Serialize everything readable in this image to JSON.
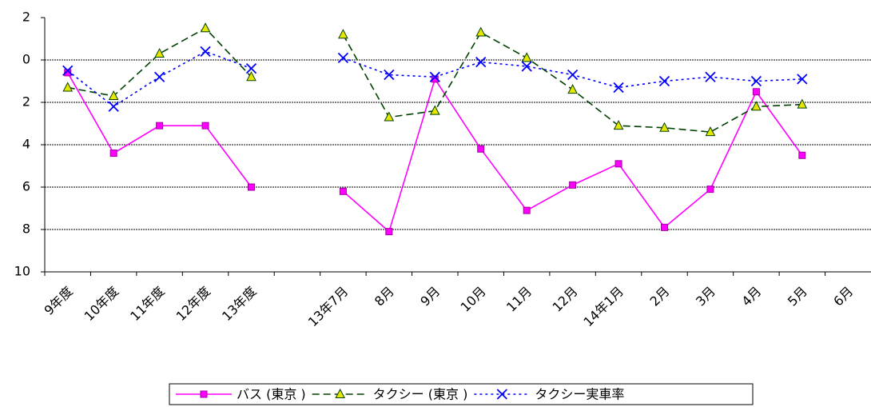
{
  "chart_data": {
    "type": "line",
    "categories": [
      "9年度",
      "10年度",
      "11年度",
      "12年度",
      "13年度",
      null,
      "13年7月",
      "8月",
      "9月",
      "10月",
      "11月",
      "12月",
      "14年1月",
      "2月",
      "3月",
      "4月",
      "5月",
      "6月"
    ],
    "series": [
      {
        "name": "バス (東京 )",
        "color": "#ff00ff",
        "line_style": "solid",
        "marker": "square",
        "values": [
          -0.6,
          -4.4,
          -3.1,
          -3.1,
          -6.0,
          null,
          -6.2,
          -8.1,
          -0.9,
          -4.2,
          -7.1,
          -5.9,
          -4.9,
          -7.9,
          -6.1,
          -1.5,
          -4.5,
          null
        ]
      },
      {
        "name": "タクシー (東京 )",
        "color": "#004000",
        "line_style": "dashed",
        "marker": "triangle",
        "values": [
          -1.3,
          -1.7,
          0.3,
          1.5,
          -0.8,
          null,
          1.2,
          -2.7,
          -2.4,
          1.3,
          0.1,
          -1.4,
          -3.1,
          -3.2,
          -3.4,
          -2.2,
          -2.1,
          null
        ]
      },
      {
        "name": "タクシー実車率",
        "color": "#0000ff",
        "line_style": "dotted",
        "marker": "x",
        "values": [
          -0.5,
          -2.2,
          -0.8,
          0.4,
          -0.4,
          null,
          0.1,
          -0.7,
          -0.8,
          -0.1,
          -0.3,
          -0.7,
          -1.3,
          -1.0,
          -0.8,
          -1.0,
          -0.9,
          null
        ]
      }
    ],
    "ylim": [
      -10,
      2
    ],
    "yticks": [
      2,
      0,
      {
        "value": -2,
        "label": "2"
      },
      {
        "value": -4,
        "label": "4"
      },
      {
        "value": -6,
        "label": "6"
      },
      {
        "value": -8,
        "label": "8"
      },
      {
        "value": -10,
        "label": "10"
      }
    ],
    "grid": true,
    "legend": "bottom"
  }
}
